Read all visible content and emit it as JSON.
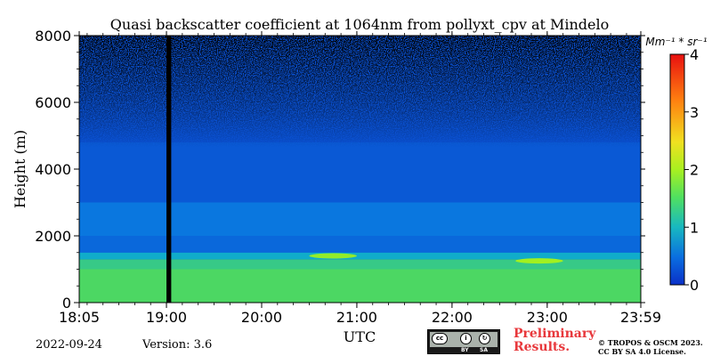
{
  "chart_data": {
    "type": "heatmap",
    "title": "Quasi backscatter coefficient at 1064nm from pollyxt_cpv at Mindelo",
    "xlabel": "UTC",
    "ylabel": "Height (m)",
    "x_range": [
      "18:05",
      "23:59"
    ],
    "x_ticks": [
      "18:05",
      "19:00",
      "20:00",
      "21:00",
      "22:00",
      "23:00",
      "23:59"
    ],
    "y_range": [
      0,
      8000
    ],
    "y_ticks": [
      0,
      2000,
      4000,
      6000,
      8000
    ],
    "colorbar": {
      "unit": "Mm⁻¹ * sr⁻¹",
      "range": [
        0,
        4
      ],
      "ticks": [
        0,
        1,
        2,
        3,
        4
      ],
      "colormap": [
        "#0a3cc8",
        "#0a74e0",
        "#10b0c8",
        "#4ed860",
        "#a0f020",
        "#f0e020",
        "#ff8010",
        "#f02010"
      ]
    },
    "layers": [
      {
        "bottom": 0,
        "top": 1000,
        "value": 1.7
      },
      {
        "bottom": 1000,
        "top": 1300,
        "value": 1.5
      },
      {
        "bottom": 1300,
        "top": 1500,
        "value": 1.1
      },
      {
        "bottom": 1500,
        "top": 2000,
        "value": 0.45
      },
      {
        "bottom": 2000,
        "top": 3000,
        "value": 0.6
      },
      {
        "bottom": 3000,
        "top": 4800,
        "value": 0.3
      },
      {
        "bottom": 4800,
        "top": 8000,
        "value": 0.2
      }
    ],
    "features": [
      {
        "start": "20:30",
        "end": "21:00",
        "height": 1400,
        "value": 2.2
      },
      {
        "start": "22:40",
        "end": "23:10",
        "height": 1250,
        "value": 2.3
      }
    ],
    "gap": {
      "start": "19:00",
      "end": "19:03"
    }
  },
  "footer": {
    "date": "2022-09-24",
    "version": "Version: 3.6",
    "preliminary_line1": "Preliminary",
    "preliminary_line2": "Results.",
    "copyright_line1": "© TROPOS & OSCM 2023.",
    "copyright_line2": "CC BY SA 4.0 License.",
    "cc_by": "BY",
    "cc_sa": "SA"
  }
}
